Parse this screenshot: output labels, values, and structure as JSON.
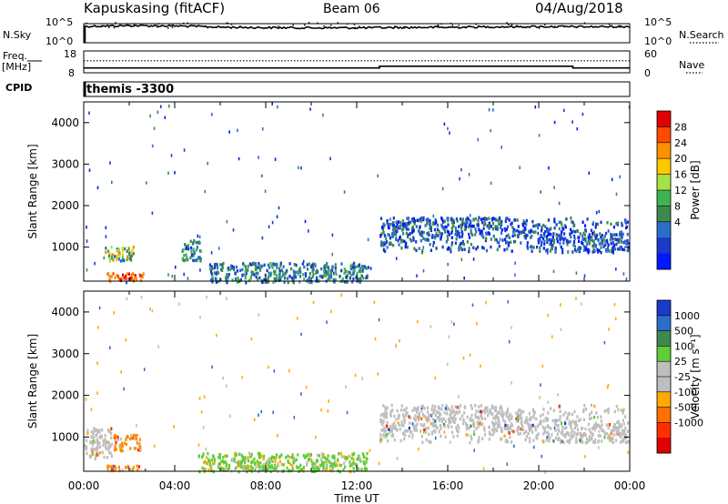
{
  "header": {
    "station": "Kapuskasing (fitACF)",
    "beam": "Beam 06",
    "date": "04/Aug/2018"
  },
  "side_labels": {
    "nsky": "N.Sky",
    "nsearch": "N.Search",
    "freq": "Freq.",
    "mhz": "[MHz]",
    "nave": "Nave",
    "cpid": "CPID",
    "cpid_value": "themis -3300"
  },
  "chart_data": [
    {
      "type": "line",
      "panel": "noise",
      "series": [
        {
          "name": "N.Sky",
          "style": "solid"
        },
        {
          "name": "N.Search",
          "style": "dotted"
        }
      ],
      "left_ticks": [
        "10^5",
        "10^0"
      ],
      "right_ticks": [
        "10^5",
        "10^0"
      ],
      "scale": "log",
      "ylim": [
        1,
        100000
      ],
      "x": [
        0,
        2,
        4,
        6,
        8,
        10,
        12,
        14,
        16,
        18,
        20,
        22,
        24
      ],
      "nsky_approx": [
        20000,
        30000,
        25000,
        12000,
        9000,
        8000,
        8000,
        10000,
        11000,
        15000,
        17000,
        15000,
        18000
      ]
    },
    {
      "type": "line",
      "panel": "frequency",
      "series": [
        {
          "name": "Freq.",
          "style": "solid"
        },
        {
          "name": "Nave",
          "style": "dotted"
        }
      ],
      "left_ticks": [
        "18",
        "8"
      ],
      "right_ticks": [
        "60",
        "0"
      ],
      "freq_mhz": [
        [
          0,
          10.2
        ],
        [
          13,
          10.2
        ],
        [
          13,
          11.0
        ],
        [
          21.5,
          11.0
        ],
        [
          21.5,
          10.2
        ],
        [
          24,
          10.2
        ]
      ],
      "nave": 33
    },
    {
      "type": "heatmap",
      "panel": "power",
      "ylabel": "Slant Range [km]",
      "yticks": [
        "1000",
        "2000",
        "3000",
        "4000"
      ],
      "ylim": [
        180,
        4500
      ],
      "xlim": [
        0,
        24
      ],
      "colorbar": {
        "label": "Power [dB]",
        "ticks": [
          "28",
          "24",
          "20",
          "16",
          "12",
          "8",
          "4"
        ],
        "colors": [
          "#e00000",
          "#ff4a00",
          "#ff9000",
          "#ffc800",
          "#a8e048",
          "#3fb34f",
          "#3e8a4c",
          "#2a6ec8",
          "#1a3ac8",
          "#0018ff"
        ]
      },
      "regions": [
        {
          "t": [
            0.9,
            2.2
          ],
          "r": [
            700,
            1050
          ],
          "level": "high"
        },
        {
          "t": [
            1.0,
            2.6
          ],
          "r": [
            180,
            400
          ],
          "level": "very high"
        },
        {
          "t": [
            4.3,
            5.2
          ],
          "r": [
            700,
            1200
          ],
          "level": "mid"
        },
        {
          "t": [
            5.5,
            12.5
          ],
          "r": [
            180,
            650
          ],
          "level": "mid"
        },
        {
          "t": [
            13.0,
            23.9
          ],
          "r": [
            900,
            1750
          ],
          "level": "low-mid"
        }
      ]
    },
    {
      "type": "heatmap",
      "panel": "velocity",
      "ylabel": "Slant Range [km]",
      "yticks": [
        "1000",
        "2000",
        "3000",
        "4000"
      ],
      "ylim": [
        180,
        4500
      ],
      "xlim": [
        0,
        24
      ],
      "colorbar": {
        "label": "Velocity [m s⁻¹]",
        "ticks": [
          "1000",
          "500",
          "100",
          "25",
          "-25",
          "-100",
          "-500",
          "-1000"
        ],
        "colors": [
          "#1a3ac8",
          "#2a6ec8",
          "#3e8a4c",
          "#5fcc3a",
          "#bebebe",
          "#bebebe",
          "#ffaa00",
          "#ff7000",
          "#ff3000",
          "#e00000"
        ]
      },
      "regions": [
        {
          "t": [
            0.0,
            1.2
          ],
          "r": [
            500,
            1250
          ],
          "class": "ground scatter"
        },
        {
          "t": [
            1.3,
            2.5
          ],
          "r": [
            700,
            1100
          ],
          "class": "away (orange)"
        },
        {
          "t": [
            1.0,
            2.5
          ],
          "r": [
            200,
            350
          ],
          "class": "away (orange)"
        },
        {
          "t": [
            5.0,
            12.5
          ],
          "r": [
            200,
            650
          ],
          "class": "toward (green)"
        },
        {
          "t": [
            13.0,
            23.9
          ],
          "r": [
            900,
            1800
          ],
          "class": "ground scatter"
        }
      ]
    }
  ],
  "x_axis": {
    "ticks": [
      "00:00",
      "04:00",
      "08:00",
      "12:00",
      "16:00",
      "20:00",
      "00:00"
    ],
    "label": "Time UT"
  }
}
